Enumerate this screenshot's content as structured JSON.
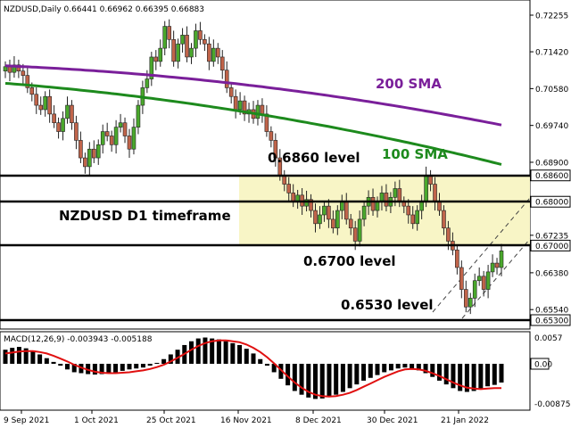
{
  "header": {
    "symbol_line": "NZDUSD,Daily  0.66441 0.66962 0.66395 0.66883"
  },
  "colors": {
    "background": "#ffffff",
    "bull": "#4aa82c",
    "bear": "#c0644a",
    "sma200": "#7a1f9a",
    "sma100": "#1d8a1d",
    "zone": "#f8f5c6",
    "macd_hist": "#000000",
    "macd_signal": "#e01010",
    "level_line": "#000000"
  },
  "annotations": {
    "sma200_label": "200 SMA",
    "sma100_label": "100 SMA",
    "level_0686": "0.6860 level",
    "level_0670": "0.6700 level",
    "level_0653": "0.6530 level",
    "timeframe": "NZDUSD D1 timeframe"
  },
  "chart_data": [
    {
      "type": "candlestick",
      "title": "NZDUSD,Daily",
      "ohlc_header": [
        "0.66441",
        "0.66962",
        "0.66395",
        "0.66883"
      ],
      "ylim": [
        0.6525,
        0.7245
      ],
      "y_ticks": [
        "0.72255",
        "0.71420",
        "0.70580",
        "0.69740",
        "0.68900",
        "0.68600",
        "0.68000",
        "0.67235",
        "0.67000",
        "0.66380",
        "0.65540",
        "0.65300"
      ],
      "x_ticks": [
        "9 Sep 2021",
        "1 Oct 2021",
        "25 Oct 2021",
        "16 Nov 2021",
        "8 Dec 2021",
        "30 Dec 2021",
        "21 Jan 2022"
      ],
      "closes": [
        0.7108,
        0.7095,
        0.7112,
        0.7098,
        0.7088,
        0.706,
        0.7045,
        0.702,
        0.701,
        0.704,
        0.7,
        0.698,
        0.696,
        0.699,
        0.702,
        0.698,
        0.694,
        0.69,
        0.688,
        0.692,
        0.69,
        0.693,
        0.696,
        0.695,
        0.693,
        0.697,
        0.698,
        0.695,
        0.692,
        0.697,
        0.702,
        0.706,
        0.708,
        0.713,
        0.712,
        0.715,
        0.72,
        0.717,
        0.712,
        0.716,
        0.718,
        0.713,
        0.715,
        0.719,
        0.717,
        0.716,
        0.712,
        0.715,
        0.713,
        0.71,
        0.706,
        0.704,
        0.701,
        0.703,
        0.7,
        0.701,
        0.699,
        0.702,
        0.7,
        0.696,
        0.694,
        0.69,
        0.686,
        0.684,
        0.682,
        0.68,
        0.6815,
        0.679,
        0.6805,
        0.678,
        0.675,
        0.677,
        0.679,
        0.676,
        0.674,
        0.678,
        0.68,
        0.676,
        0.674,
        0.671,
        0.676,
        0.679,
        0.681,
        0.678,
        0.68,
        0.682,
        0.679,
        0.681,
        0.683,
        0.68,
        0.679,
        0.677,
        0.675,
        0.678,
        0.68,
        0.686,
        0.684,
        0.68,
        0.678,
        0.674,
        0.671,
        0.669,
        0.665,
        0.66,
        0.656,
        0.658,
        0.662,
        0.663,
        0.66,
        0.664,
        0.666,
        0.665,
        0.6688
      ],
      "series": [
        {
          "name": "200 SMA",
          "start": 0.711,
          "end": 0.6975
        },
        {
          "name": "100 SMA",
          "start": 0.707,
          "end": 0.6885
        }
      ],
      "levels": [
        0.686,
        0.68,
        0.67,
        0.653
      ],
      "zone": [
        0.67,
        0.686
      ]
    },
    {
      "type": "bar",
      "title": "MACD(12,26,9) -0.003943 -0.005188",
      "series": [
        {
          "name": "MACD(12,26,9)"
        },
        {
          "name": "signal"
        }
      ],
      "y_ticks": [
        "0.0057",
        "0.00",
        "-0.008756"
      ],
      "ylim": [
        -0.009,
        0.006
      ],
      "macd_values": [
        0.003,
        0.0034,
        0.0036,
        0.0033,
        0.0028,
        0.002,
        0.0012,
        0.0004,
        -0.0004,
        -0.0012,
        -0.0018,
        -0.002,
        -0.0022,
        -0.0023,
        -0.0022,
        -0.002,
        -0.0018,
        -0.0015,
        -0.0012,
        -0.001,
        -0.0008,
        -0.0004,
        0.0002,
        0.001,
        0.002,
        0.003,
        0.004,
        0.0048,
        0.0054,
        0.0056,
        0.0054,
        0.0052,
        0.0048,
        0.0044,
        0.004,
        0.0032,
        0.0022,
        0.001,
        -0.0004,
        -0.0018,
        -0.0032,
        -0.0046,
        -0.0058,
        -0.0066,
        -0.0072,
        -0.0075,
        -0.0074,
        -0.007,
        -0.0066,
        -0.006,
        -0.0052,
        -0.0044,
        -0.0036,
        -0.003,
        -0.0024,
        -0.0018,
        -0.0014,
        -0.001,
        -0.0008,
        -0.001,
        -0.0014,
        -0.002,
        -0.0028,
        -0.0036,
        -0.0044,
        -0.0052,
        -0.0058,
        -0.006,
        -0.0058,
        -0.0054,
        -0.0048,
        -0.0045,
        -0.004
      ],
      "signal_values": [
        0.0022,
        0.0024,
        0.0026,
        0.0027,
        0.0027,
        0.0025,
        0.0022,
        0.0017,
        0.0011,
        0.0005,
        -0.0002,
        -0.0008,
        -0.0013,
        -0.0017,
        -0.0019,
        -0.002,
        -0.002,
        -0.0019,
        -0.0018,
        -0.0016,
        -0.0014,
        -0.0011,
        -0.0007,
        -0.0002,
        0.0005,
        0.0013,
        0.0021,
        0.003,
        0.0038,
        0.0044,
        0.0048,
        0.005,
        0.005,
        0.0048,
        0.0046,
        0.0041,
        0.0034,
        0.0025,
        0.0014,
        0.0001,
        -0.0013,
        -0.0027,
        -0.004,
        -0.0051,
        -0.006,
        -0.0066,
        -0.0069,
        -0.007,
        -0.0069,
        -0.0066,
        -0.0062,
        -0.0056,
        -0.0049,
        -0.0042,
        -0.0035,
        -0.0028,
        -0.0022,
        -0.0016,
        -0.0012,
        -0.0011,
        -0.0012,
        -0.0015,
        -0.002,
        -0.0026,
        -0.0033,
        -0.004,
        -0.0046,
        -0.0051,
        -0.0053,
        -0.0054,
        -0.0053,
        -0.0052,
        -0.0052
      ]
    }
  ]
}
